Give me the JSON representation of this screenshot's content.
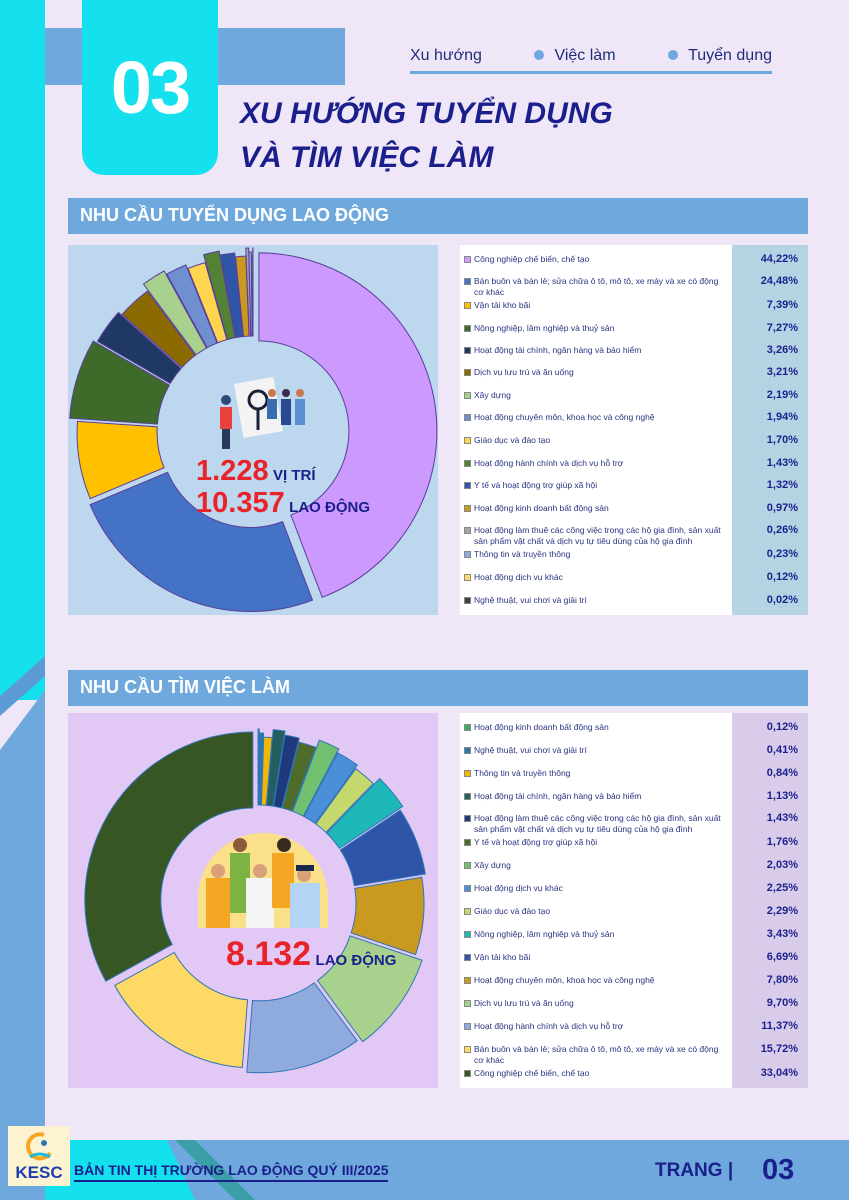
{
  "header": {
    "number": "03",
    "nav": [
      "Xu hướng",
      "Việc làm",
      "Tuyển dụng"
    ],
    "title_line1": "XU HƯỚNG TUYỂN DỤNG",
    "title_line2": "VÀ TÌM VIỆC LÀM"
  },
  "section1": {
    "title": "NHU CẦU TUYỂN DỤNG LAO ĐỘNG",
    "big1": "1.228",
    "unit1": "VỊ TRÍ",
    "big2": "10.357",
    "unit2": "LAO ĐỘNG"
  },
  "section2": {
    "title": "NHU CẦU TÌM VIỆC LÀM",
    "big1": "8.132",
    "unit1": "LAO ĐỘNG"
  },
  "chart_data": [
    {
      "type": "pie",
      "title": "NHU CẦU TUYỂN DỤNG LAO ĐỘNG",
      "categories": [
        "Công nghiệp chế biến, chế tạo",
        "Bán buôn và bán lẻ; sửa chữa ô tô, mô tô, xe máy và xe có động cơ khác",
        "Vận tải kho bãi",
        "Nông nghiệp, lâm nghiệp và thuỷ sản",
        "Hoạt động tài chính, ngân hàng và bảo hiểm",
        "Dịch vụ lưu trú và ăn uống",
        "Xây dựng",
        "Hoạt động chuyên môn, khoa học và công nghệ",
        "Giáo dục và đào tạo",
        "Hoạt động hành chính và dịch vụ hỗ trợ",
        "Y tế và hoạt động trợ giúp xã hội",
        "Hoạt động kinh doanh bất động sản",
        "Hoạt động làm thuê các công việc trong các hộ gia đình, sản xuất sản phẩm vật chất và dịch vụ tự tiêu dùng của hộ gia đình",
        "Thông tin và truyền thông",
        "Hoạt động dịch vụ khác",
        "Nghệ thuật, vui chơi và giải trí"
      ],
      "values": [
        44.22,
        24.48,
        7.39,
        7.27,
        3.26,
        3.21,
        2.19,
        1.94,
        1.7,
        1.43,
        1.32,
        0.97,
        0.26,
        0.23,
        0.12,
        0.02
      ],
      "labels": [
        "44,22%",
        "24,48%",
        "7,39%",
        "7,27%",
        "3,26%",
        "3,21%",
        "2,19%",
        "1,94%",
        "1,70%",
        "1,43%",
        "1,32%",
        "0,97%",
        "0,26%",
        "0,23%",
        "0,12%",
        "0,02%"
      ],
      "colors": [
        "#CC99FF",
        "#4472C4",
        "#FFC000",
        "#3E6B2A",
        "#203864",
        "#8B6B00",
        "#A9D18E",
        "#6F8FD0",
        "#FFD54F",
        "#548235",
        "#2F55A8",
        "#C99A1F",
        "#A5A5A5",
        "#8FAADC",
        "#FFD966",
        "#404040"
      ]
    },
    {
      "type": "pie",
      "title": "NHU CẦU TÌM VIỆC LÀM",
      "categories": [
        "Hoạt động kinh doanh bất động sản",
        "Nghệ thuật, vui chơi và giải trí",
        "Thông tin và truyền thông",
        "Hoạt động tài chính, ngân hàng và bảo hiểm",
        "Hoạt động làm thuê các công việc trong các hộ gia đình, sản xuất sản phẩm vật chất và dịch vụ tự tiêu dùng của hộ gia đình",
        "Y tế và hoạt động trợ giúp xã hội",
        "Xây dựng",
        "Hoạt động dịch vụ khác",
        "Giáo dục và đào tạo",
        "Nông nghiệp, lâm nghiệp và thuỷ sản",
        "Vận tải kho bãi",
        "Hoạt động chuyên môn, khoa học và công nghệ",
        "Dịch vụ lưu trú và ăn uống",
        "Hoạt động hành chính và dịch vụ hỗ trợ",
        "Bán buôn và bán lẻ; sửa chữa ô tô, mô tô, xe máy và xe có động cơ khác",
        "Công nghiệp chế biến, chế tạo"
      ],
      "values": [
        0.12,
        0.41,
        0.84,
        1.13,
        1.43,
        1.76,
        2.03,
        2.25,
        2.29,
        3.43,
        6.69,
        7.8,
        9.7,
        11.37,
        15.72,
        33.04
      ],
      "labels": [
        "0,12%",
        "0,41%",
        "0,84%",
        "1,13%",
        "1,43%",
        "1,76%",
        "2,03%",
        "2,25%",
        "2,29%",
        "3,43%",
        "6,69%",
        "7,80%",
        "9,70%",
        "11,37%",
        "15,72%",
        "33,04%"
      ],
      "colors": [
        "#3FA85A",
        "#2E75B6",
        "#F2B705",
        "#255E5E",
        "#1F3A7A",
        "#4E6B2A",
        "#70C070",
        "#4A8FD8",
        "#C5D86D",
        "#1FB8B8",
        "#2F55A8",
        "#C99A1F",
        "#A9D18E",
        "#8FAADC",
        "#FFD966",
        "#375623"
      ]
    }
  ],
  "footer": {
    "logo_text": "KESC",
    "bulletin": "BẢN TIN THỊ TRƯỜNG LAO ĐỘNG QUÝ III/2025",
    "page_label": "TRANG |",
    "page_number": "03"
  }
}
